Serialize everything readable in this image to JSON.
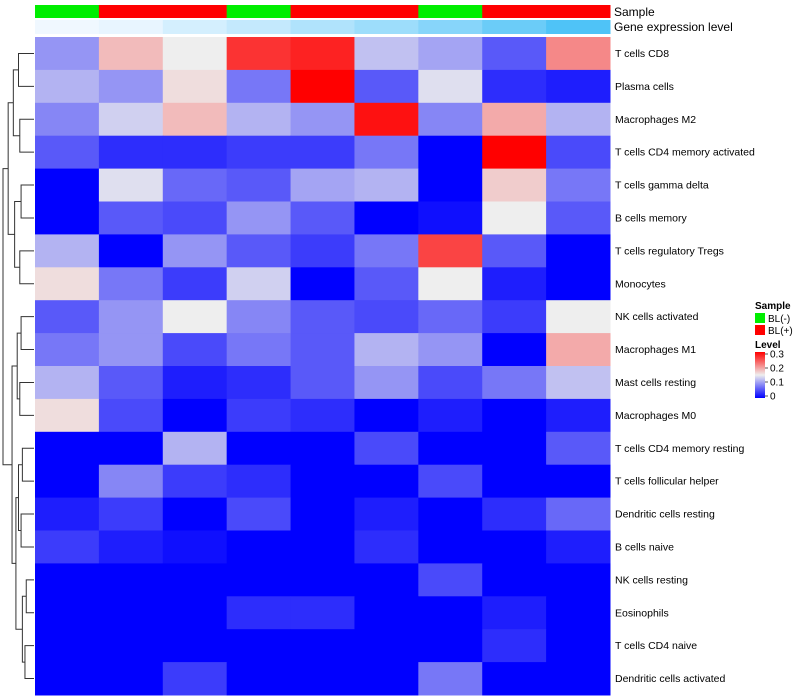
{
  "chart_data": {
    "type": "heatmap",
    "title": "",
    "annotation_rows": [
      {
        "name": "Sample",
        "values": [
          "BL(-)",
          "BL(+)",
          "BL(+)",
          "BL(-)",
          "BL(+)",
          "BL(+)",
          "BL(-)",
          "BL(+)",
          "BL(+)"
        ]
      },
      {
        "name": "Gene expression level",
        "values": [
          0.02,
          0.05,
          0.12,
          0.18,
          0.25,
          0.32,
          0.4,
          0.5,
          0.6
        ]
      }
    ],
    "rows": [
      "T cells CD8",
      "Plasma cells",
      "Macrophages M2",
      "T cells CD4 memory activated",
      "T cells gamma delta",
      "B cells memory",
      "T cells regulatory  Tregs",
      "Monocytes",
      "NK cells activated",
      "Macrophages M1",
      "Mast cells resting",
      "Macrophages M0",
      "T cells CD4 memory resting",
      "T cells follicular helper",
      "Dendritic cells resting",
      "B cells naive",
      "NK cells resting",
      "Eosinophils",
      "T cells CD4 naive",
      "Dendritic cells activated"
    ],
    "matrix": [
      [
        0.1,
        0.19,
        0.16,
        0.27,
        0.28,
        0.13,
        0.11,
        0.06,
        0.22
      ],
      [
        0.12,
        0.1,
        0.17,
        0.08,
        0.31,
        0.06,
        0.15,
        0.03,
        0.02
      ],
      [
        0.09,
        0.14,
        0.19,
        0.12,
        0.1,
        0.29,
        0.09,
        0.2,
        0.12
      ],
      [
        0.06,
        0.03,
        0.03,
        0.04,
        0.04,
        0.08,
        0.0,
        0.31,
        0.05
      ],
      [
        0.0,
        0.15,
        0.07,
        0.06,
        0.11,
        0.12,
        0.0,
        0.18,
        0.08
      ],
      [
        0.0,
        0.06,
        0.05,
        0.1,
        0.06,
        0.0,
        0.01,
        0.16,
        0.06
      ],
      [
        0.12,
        0.0,
        0.1,
        0.06,
        0.04,
        0.08,
        0.26,
        0.06,
        0.0
      ],
      [
        0.17,
        0.08,
        0.04,
        0.14,
        0.0,
        0.06,
        0.16,
        0.02,
        0.0
      ],
      [
        0.06,
        0.1,
        0.16,
        0.09,
        0.06,
        0.05,
        0.07,
        0.04,
        0.16
      ],
      [
        0.08,
        0.1,
        0.05,
        0.08,
        0.06,
        0.12,
        0.1,
        0.0,
        0.2
      ],
      [
        0.12,
        0.06,
        0.02,
        0.03,
        0.06,
        0.1,
        0.05,
        0.08,
        0.13
      ],
      [
        0.17,
        0.05,
        0.0,
        0.04,
        0.03,
        0.0,
        0.02,
        0.0,
        0.02
      ],
      [
        0.0,
        0.0,
        0.12,
        0.0,
        0.0,
        0.05,
        0.0,
        0.0,
        0.06
      ],
      [
        0.0,
        0.09,
        0.04,
        0.03,
        0.0,
        0.0,
        0.05,
        0.0,
        0.0
      ],
      [
        0.02,
        0.04,
        0.0,
        0.05,
        0.0,
        0.02,
        0.0,
        0.03,
        0.07
      ],
      [
        0.04,
        0.02,
        0.01,
        0.0,
        0.0,
        0.03,
        0.0,
        0.0,
        0.02
      ],
      [
        0.0,
        0.0,
        0.0,
        0.0,
        0.0,
        0.0,
        0.05,
        0.0,
        0.0
      ],
      [
        0.0,
        0.0,
        0.0,
        0.03,
        0.03,
        0.0,
        0.0,
        0.02,
        0.0
      ],
      [
        0.0,
        0.0,
        0.0,
        0.0,
        0.0,
        0.0,
        0.0,
        0.03,
        0.0
      ],
      [
        0.0,
        0.0,
        0.04,
        0.0,
        0.0,
        0.0,
        0.08,
        0.0,
        0.0
      ]
    ],
    "color_scale": {
      "min": 0,
      "mid": 0.16,
      "max": 0.3,
      "low": "#0000ff",
      "mid_color": "#eeeeee",
      "high": "#ff0000"
    },
    "legends": {
      "sample": {
        "title": "Sample",
        "entries": [
          {
            "label": "BL(-)",
            "color": "#00ee00"
          },
          {
            "label": "BL(+)",
            "color": "#ff0000"
          }
        ]
      },
      "level": {
        "title": "Level",
        "ticks": [
          "0.3",
          "0.2",
          "0.1",
          "0"
        ]
      }
    },
    "sample_colors": {
      "BL(-)": "#00ee00",
      "BL(+)": "#ff0000"
    },
    "gene_expression_colors": {
      "low": "#f0f8ff",
      "high": "#4fc3f7"
    },
    "row_dendrogram": [
      [
        0,
        1,
        0.6
      ],
      [
        2,
        3,
        0.55
      ],
      [
        "n0",
        "n1",
        0.8
      ],
      [
        4,
        5,
        0.5
      ],
      [
        6,
        7,
        0.55
      ],
      [
        "n3",
        "n4",
        0.75
      ],
      [
        "n2",
        "n5",
        1.0
      ],
      [
        8,
        9,
        0.5
      ],
      [
        10,
        11,
        0.55
      ],
      [
        "n7",
        "n8",
        0.65
      ],
      [
        12,
        13,
        0.45
      ],
      [
        14,
        15,
        0.5
      ],
      [
        "n10",
        "n11",
        0.6
      ],
      [
        16,
        17,
        0.3
      ],
      [
        18,
        19,
        0.35
      ],
      [
        "n13",
        "n14",
        0.45
      ],
      [
        "n12",
        "n15",
        0.7
      ],
      [
        "n9",
        "n16",
        0.85
      ],
      [
        "n6",
        "n17",
        1.2
      ]
    ]
  }
}
